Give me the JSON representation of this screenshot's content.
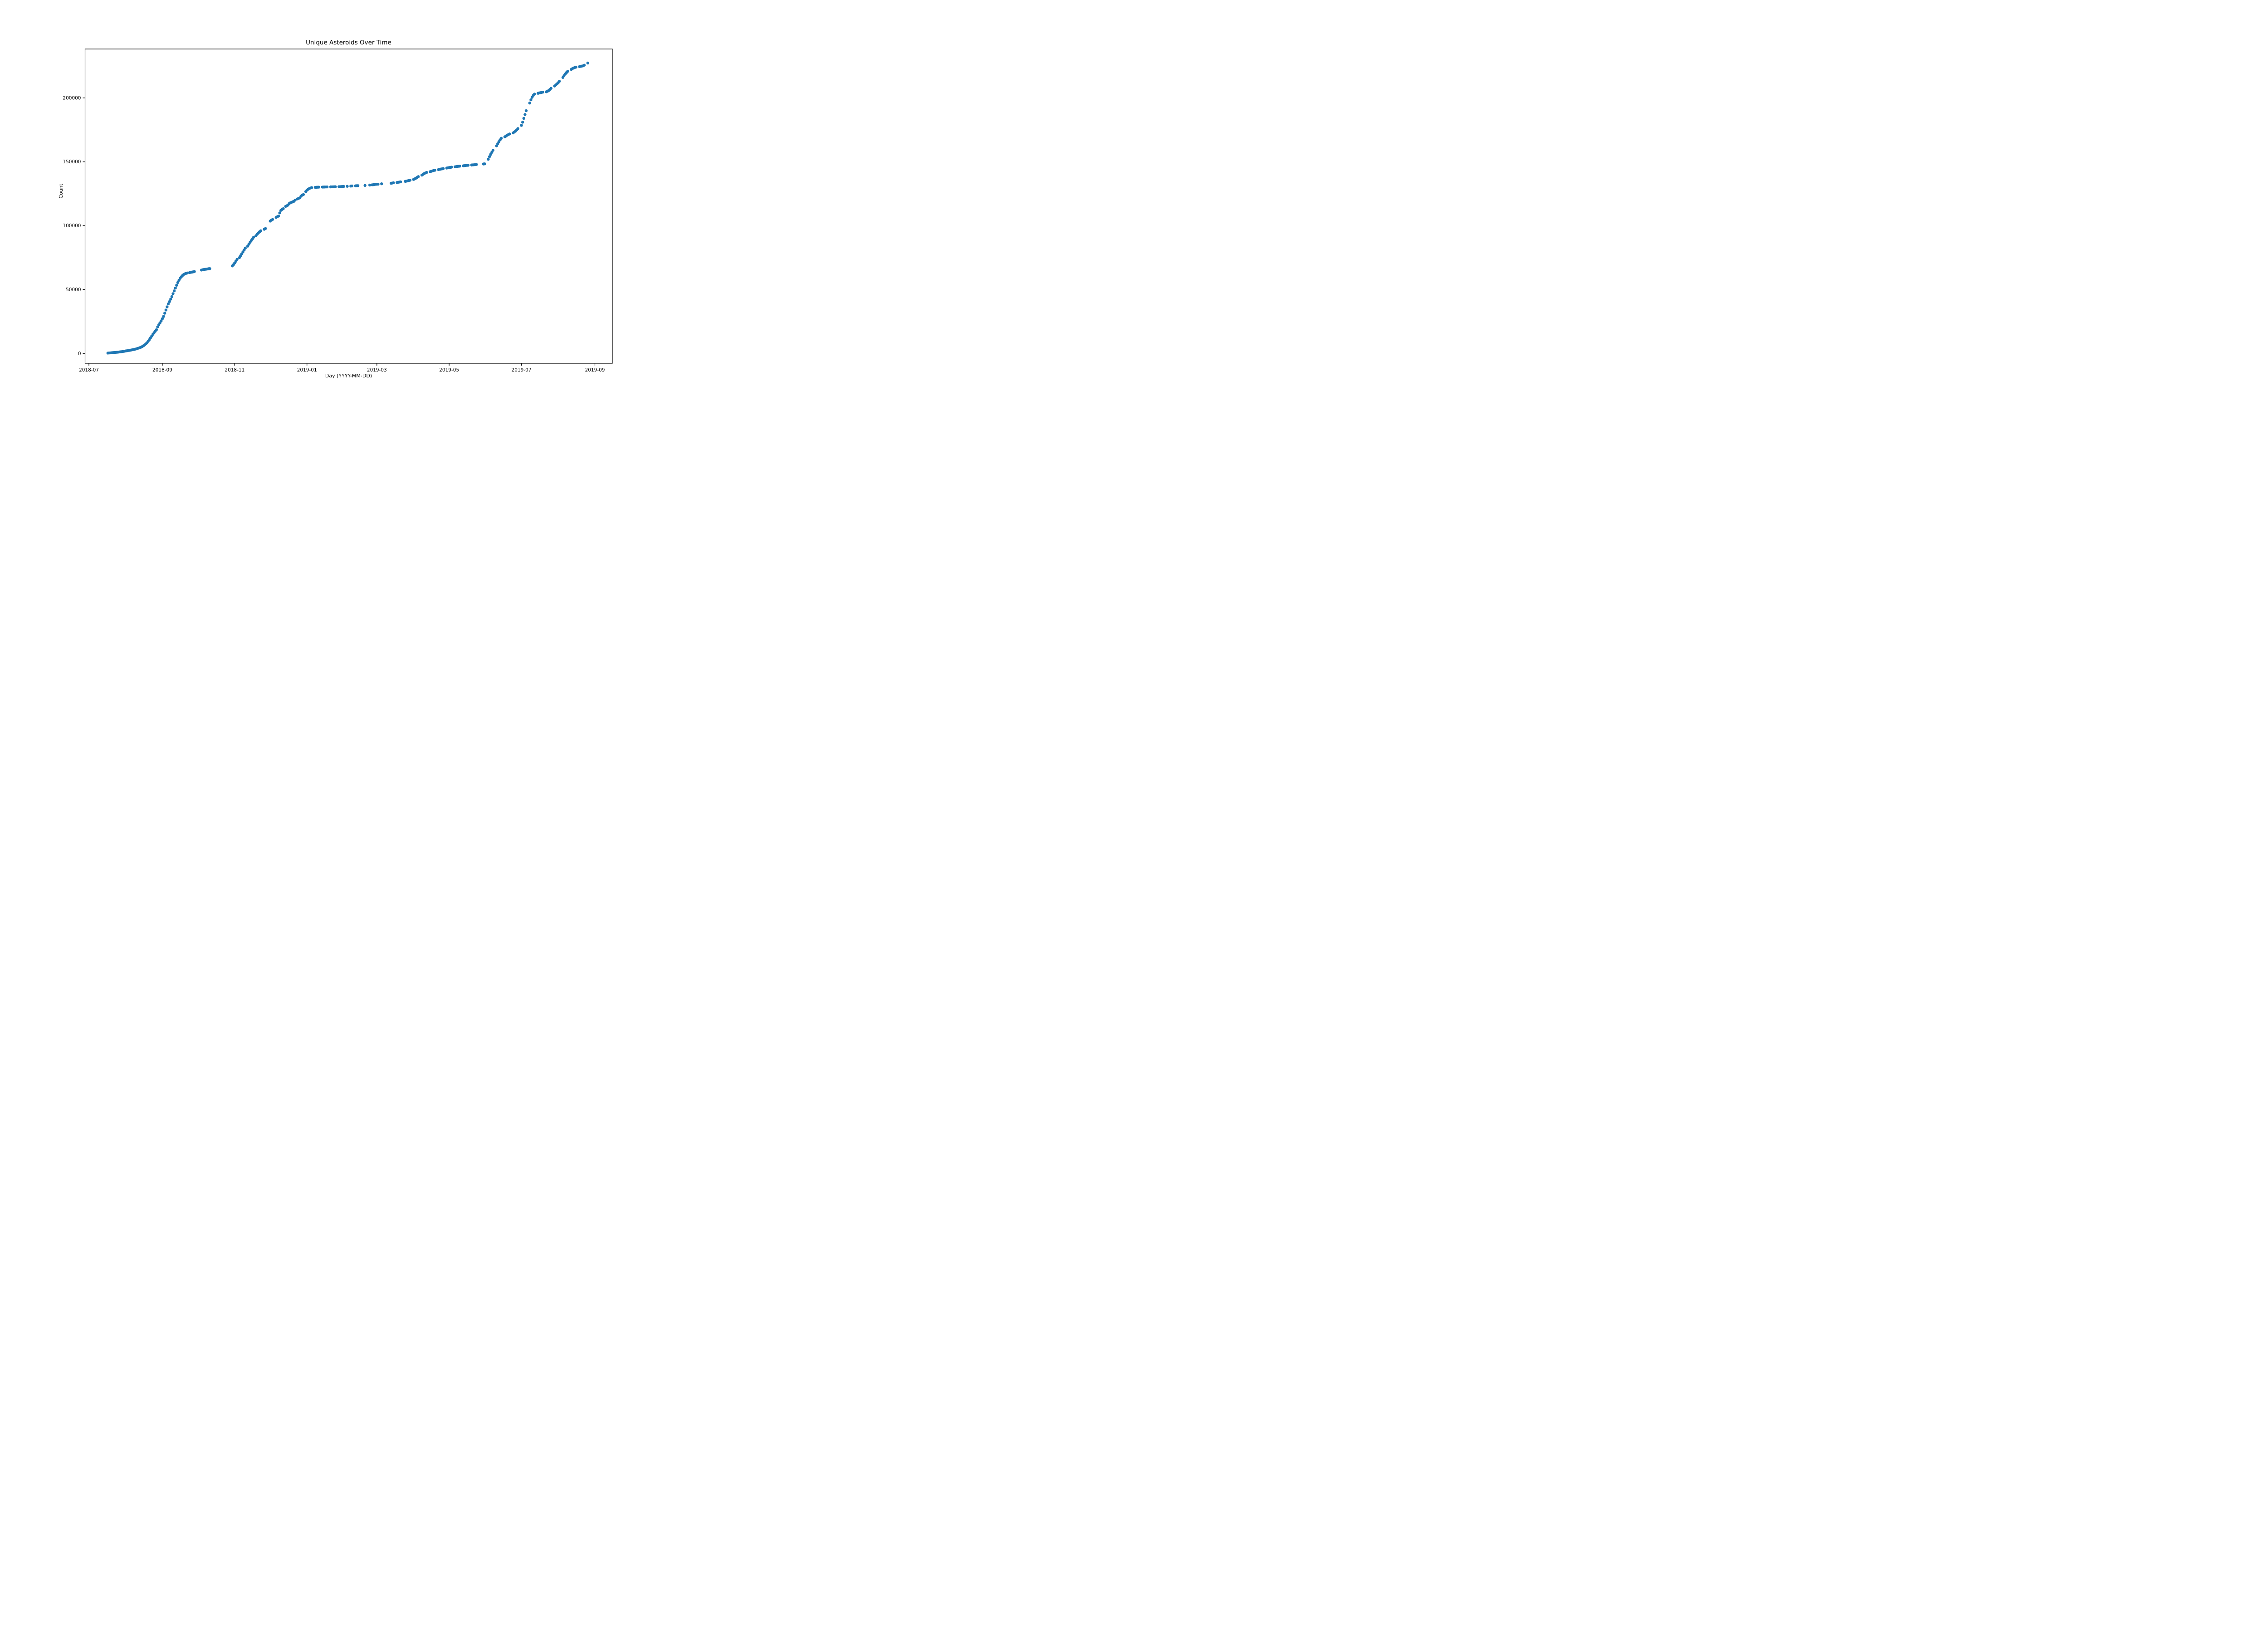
{
  "chart_data": {
    "type": "scatter",
    "title": "Unique Asteroids Over Time",
    "xlabel": "Day (YYYY-MM-DD)",
    "ylabel": "Count",
    "marker_color": "#1f77b4",
    "text_color": "#000000",
    "grid": false,
    "legend": false,
    "x_axis_start": "2018-07-01",
    "x_ticks": [
      "2018-07",
      "2018-09",
      "2018-11",
      "2019-01",
      "2019-03",
      "2019-05",
      "2019-07",
      "2019-09"
    ],
    "y_ticks": [
      0,
      50000,
      100000,
      150000,
      200000
    ],
    "ylim": [
      -11350,
      238000
    ],
    "points": [
      [
        "2018-07-17",
        300
      ],
      [
        "2018-07-18",
        400
      ],
      [
        "2018-07-19",
        480
      ],
      [
        "2018-07-20",
        560
      ],
      [
        "2018-07-21",
        640
      ],
      [
        "2018-07-22",
        720
      ],
      [
        "2018-07-23",
        800
      ],
      [
        "2018-07-24",
        900
      ],
      [
        "2018-07-25",
        1000
      ],
      [
        "2018-07-26",
        1100
      ],
      [
        "2018-07-27",
        1220
      ],
      [
        "2018-07-28",
        1350
      ],
      [
        "2018-07-29",
        1480
      ],
      [
        "2018-07-30",
        1620
      ],
      [
        "2018-07-31",
        1780
      ],
      [
        "2018-08-01",
        1950
      ],
      [
        "2018-08-02",
        2100
      ],
      [
        "2018-08-03",
        2260
      ],
      [
        "2018-08-04",
        2420
      ],
      [
        "2018-08-05",
        2580
      ],
      [
        "2018-08-06",
        2750
      ],
      [
        "2018-08-07",
        2950
      ],
      [
        "2018-08-08",
        3150
      ],
      [
        "2018-08-09",
        3380
      ],
      [
        "2018-08-10",
        3620
      ],
      [
        "2018-08-11",
        3900
      ],
      [
        "2018-08-12",
        4200
      ],
      [
        "2018-08-13",
        4550
      ],
      [
        "2018-08-14",
        4950
      ],
      [
        "2018-08-15",
        5400
      ],
      [
        "2018-08-16",
        6000
      ],
      [
        "2018-08-17",
        6700
      ],
      [
        "2018-08-18",
        7500
      ],
      [
        "2018-08-19",
        8400
      ],
      [
        "2018-08-20",
        9500
      ],
      [
        "2018-08-21",
        10800
      ],
      [
        "2018-08-22",
        12200
      ],
      [
        "2018-08-23",
        13600
      ],
      [
        "2018-08-24",
        15000
      ],
      [
        "2018-08-25",
        16300
      ],
      [
        "2018-08-26",
        17400
      ],
      [
        "2018-08-27",
        18600
      ],
      [
        "2018-08-28",
        20800
      ],
      [
        "2018-08-29",
        22500
      ],
      [
        "2018-08-30",
        24000
      ],
      [
        "2018-08-31",
        25500
      ],
      [
        "2018-09-01",
        27200
      ],
      [
        "2018-09-02",
        29000
      ],
      [
        "2018-09-03",
        31500
      ],
      [
        "2018-09-04",
        34000
      ],
      [
        "2018-09-05",
        36500
      ],
      [
        "2018-09-06",
        38800
      ],
      [
        "2018-09-07",
        40600
      ],
      [
        "2018-09-08",
        42500
      ],
      [
        "2018-09-09",
        44500
      ],
      [
        "2018-09-10",
        46800
      ],
      [
        "2018-09-11",
        49000
      ],
      [
        "2018-09-12",
        51200
      ],
      [
        "2018-09-13",
        53400
      ],
      [
        "2018-09-14",
        55500
      ],
      [
        "2018-09-15",
        57300
      ],
      [
        "2018-09-16",
        58800
      ],
      [
        "2018-09-17",
        60000
      ],
      [
        "2018-09-18",
        61000
      ],
      [
        "2018-09-19",
        61800
      ],
      [
        "2018-09-20",
        62300
      ],
      [
        "2018-09-21",
        62700
      ],
      [
        "2018-09-22",
        63000
      ],
      [
        "2018-09-24",
        63300
      ],
      [
        "2018-09-25",
        63500
      ],
      [
        "2018-09-26",
        63700
      ],
      [
        "2018-09-27",
        63900
      ],
      [
        "2018-09-28",
        64100
      ],
      [
        "2018-10-04",
        65300
      ],
      [
        "2018-10-05",
        65500
      ],
      [
        "2018-10-06",
        65700
      ],
      [
        "2018-10-07",
        65850
      ],
      [
        "2018-10-08",
        66000
      ],
      [
        "2018-10-09",
        66150
      ],
      [
        "2018-10-10",
        66300
      ],
      [
        "2018-10-11",
        66400
      ],
      [
        "2018-10-30",
        68500
      ],
      [
        "2018-10-31",
        69500
      ],
      [
        "2018-11-01",
        70800
      ],
      [
        "2018-11-02",
        72200
      ],
      [
        "2018-11-03",
        73600
      ],
      [
        "2018-11-05",
        75000
      ],
      [
        "2018-11-06",
        76500
      ],
      [
        "2018-11-07",
        78000
      ],
      [
        "2018-11-08",
        79500
      ],
      [
        "2018-11-09",
        81000
      ],
      [
        "2018-11-10",
        82500
      ],
      [
        "2018-11-12",
        84000
      ],
      [
        "2018-11-13",
        85500
      ],
      [
        "2018-11-14",
        87000
      ],
      [
        "2018-11-15",
        88400
      ],
      [
        "2018-11-16",
        89700
      ],
      [
        "2018-11-17",
        91000
      ],
      [
        "2018-11-19",
        92200
      ],
      [
        "2018-11-20",
        93300
      ],
      [
        "2018-11-21",
        94300
      ],
      [
        "2018-11-22",
        95200
      ],
      [
        "2018-11-23",
        96000
      ],
      [
        "2018-11-26",
        97200
      ],
      [
        "2018-11-27",
        97800
      ],
      [
        "2018-12-01",
        103600
      ],
      [
        "2018-12-02",
        104300
      ],
      [
        "2018-12-03",
        104900
      ],
      [
        "2018-12-06",
        106500
      ],
      [
        "2018-12-07",
        107000
      ],
      [
        "2018-12-08",
        107500
      ],
      [
        "2018-12-09",
        110000
      ],
      [
        "2018-12-10",
        112000
      ],
      [
        "2018-12-11",
        112700
      ],
      [
        "2018-12-12",
        113300
      ],
      [
        "2018-12-14",
        115100
      ],
      [
        "2018-12-15",
        115600
      ],
      [
        "2018-12-16",
        116100
      ],
      [
        "2018-12-17",
        117300
      ],
      [
        "2018-12-18",
        117900
      ],
      [
        "2018-12-19",
        118300
      ],
      [
        "2018-12-20",
        118700
      ],
      [
        "2018-12-21",
        119100
      ],
      [
        "2018-12-22",
        120000
      ],
      [
        "2018-12-24",
        121000
      ],
      [
        "2018-12-25",
        121400
      ],
      [
        "2018-12-26",
        121800
      ],
      [
        "2018-12-27",
        123100
      ],
      [
        "2018-12-28",
        123900
      ],
      [
        "2018-12-29",
        124400
      ],
      [
        "2018-12-31",
        126700
      ],
      [
        "2019-01-01",
        127800
      ],
      [
        "2019-01-02",
        128500
      ],
      [
        "2019-01-03",
        129100
      ],
      [
        "2019-01-04",
        129500
      ],
      [
        "2019-01-05",
        129800
      ],
      [
        "2019-01-08",
        130000
      ],
      [
        "2019-01-09",
        130060
      ],
      [
        "2019-01-10",
        130120
      ],
      [
        "2019-01-11",
        130170
      ],
      [
        "2019-01-14",
        130220
      ],
      [
        "2019-01-15",
        130250
      ],
      [
        "2019-01-16",
        130280
      ],
      [
        "2019-01-17",
        130310
      ],
      [
        "2019-01-18",
        130340
      ],
      [
        "2019-01-21",
        130370
      ],
      [
        "2019-01-22",
        130400
      ],
      [
        "2019-01-23",
        130430
      ],
      [
        "2019-01-24",
        130460
      ],
      [
        "2019-01-25",
        130490
      ],
      [
        "2019-01-28",
        130530
      ],
      [
        "2019-01-29",
        130570
      ],
      [
        "2019-01-30",
        130610
      ],
      [
        "2019-01-31",
        130660
      ],
      [
        "2019-02-01",
        130720
      ],
      [
        "2019-02-04",
        130820
      ],
      [
        "2019-02-07",
        131000
      ],
      [
        "2019-02-08",
        131100
      ],
      [
        "2019-02-11",
        131200
      ],
      [
        "2019-02-12",
        131260
      ],
      [
        "2019-02-13",
        131320
      ],
      [
        "2019-02-19",
        131500
      ],
      [
        "2019-02-23",
        131800
      ],
      [
        "2019-02-25",
        132000
      ],
      [
        "2019-02-26",
        132100
      ],
      [
        "2019-02-27",
        132220
      ],
      [
        "2019-02-28",
        132350
      ],
      [
        "2019-03-01",
        132450
      ],
      [
        "2019-03-02",
        132520
      ],
      [
        "2019-03-05",
        132800
      ],
      [
        "2019-03-13",
        133200
      ],
      [
        "2019-03-14",
        133400
      ],
      [
        "2019-03-15",
        133600
      ],
      [
        "2019-03-18",
        133800
      ],
      [
        "2019-03-19",
        134000
      ],
      [
        "2019-03-20",
        134150
      ],
      [
        "2019-03-21",
        134300
      ],
      [
        "2019-03-25",
        134700
      ],
      [
        "2019-03-26",
        134900
      ],
      [
        "2019-03-27",
        135100
      ],
      [
        "2019-03-28",
        135300
      ],
      [
        "2019-03-29",
        135600
      ],
      [
        "2019-04-01",
        136200
      ],
      [
        "2019-04-02",
        136700
      ],
      [
        "2019-04-03",
        137200
      ],
      [
        "2019-04-04",
        137800
      ],
      [
        "2019-04-05",
        138400
      ],
      [
        "2019-04-08",
        139600
      ],
      [
        "2019-04-09",
        140200
      ],
      [
        "2019-04-10",
        140800
      ],
      [
        "2019-04-11",
        141300
      ],
      [
        "2019-04-12",
        141700
      ],
      [
        "2019-04-15",
        142300
      ],
      [
        "2019-04-16",
        142600
      ],
      [
        "2019-04-17",
        142900
      ],
      [
        "2019-04-18",
        143200
      ],
      [
        "2019-04-19",
        143400
      ],
      [
        "2019-04-22",
        143900
      ],
      [
        "2019-04-23",
        144100
      ],
      [
        "2019-04-24",
        144300
      ],
      [
        "2019-04-25",
        144500
      ],
      [
        "2019-04-26",
        144700
      ],
      [
        "2019-04-29",
        145100
      ],
      [
        "2019-04-30",
        145300
      ],
      [
        "2019-05-01",
        145500
      ],
      [
        "2019-05-02",
        145650
      ],
      [
        "2019-05-03",
        145800
      ],
      [
        "2019-05-06",
        146100
      ],
      [
        "2019-05-07",
        146250
      ],
      [
        "2019-05-08",
        146400
      ],
      [
        "2019-05-09",
        146500
      ],
      [
        "2019-05-10",
        146600
      ],
      [
        "2019-05-13",
        146900
      ],
      [
        "2019-05-14",
        147000
      ],
      [
        "2019-05-15",
        147100
      ],
      [
        "2019-05-16",
        147200
      ],
      [
        "2019-05-17",
        147300
      ],
      [
        "2019-05-20",
        147500
      ],
      [
        "2019-05-21",
        147600
      ],
      [
        "2019-05-22",
        147700
      ],
      [
        "2019-05-23",
        147800
      ],
      [
        "2019-05-24",
        147900
      ],
      [
        "2019-05-30",
        148300
      ],
      [
        "2019-05-31",
        148400
      ],
      [
        "2019-06-03",
        152000
      ],
      [
        "2019-06-04",
        154000
      ],
      [
        "2019-06-05",
        155800
      ],
      [
        "2019-06-06",
        157400
      ],
      [
        "2019-06-07",
        159000
      ],
      [
        "2019-06-10",
        162500
      ],
      [
        "2019-06-11",
        164200
      ],
      [
        "2019-06-12",
        165800
      ],
      [
        "2019-06-13",
        167200
      ],
      [
        "2019-06-14",
        168400
      ],
      [
        "2019-06-17",
        169600
      ],
      [
        "2019-06-18",
        170200
      ],
      [
        "2019-06-19",
        170800
      ],
      [
        "2019-06-20",
        171300
      ],
      [
        "2019-06-21",
        171800
      ],
      [
        "2019-06-24",
        172600
      ],
      [
        "2019-06-25",
        173300
      ],
      [
        "2019-06-26",
        174100
      ],
      [
        "2019-06-27",
        175000
      ],
      [
        "2019-06-28",
        176000
      ],
      [
        "2019-07-01",
        178500
      ],
      [
        "2019-07-02",
        181000
      ],
      [
        "2019-07-03",
        184000
      ],
      [
        "2019-07-04",
        187000
      ],
      [
        "2019-07-05",
        190000
      ],
      [
        "2019-07-08",
        196000
      ],
      [
        "2019-07-09",
        198500
      ],
      [
        "2019-07-10",
        200500
      ],
      [
        "2019-07-11",
        202000
      ],
      [
        "2019-07-12",
        203000
      ],
      [
        "2019-07-15",
        203600
      ],
      [
        "2019-07-16",
        203900
      ],
      [
        "2019-07-17",
        204100
      ],
      [
        "2019-07-18",
        204300
      ],
      [
        "2019-07-19",
        204500
      ],
      [
        "2019-07-22",
        204800
      ],
      [
        "2019-07-23",
        205200
      ],
      [
        "2019-07-24",
        205800
      ],
      [
        "2019-07-25",
        206600
      ],
      [
        "2019-07-26",
        207500
      ],
      [
        "2019-07-29",
        209300
      ],
      [
        "2019-07-30",
        210200
      ],
      [
        "2019-07-31",
        211000
      ],
      [
        "2019-08-01",
        211900
      ],
      [
        "2019-08-02",
        213000
      ],
      [
        "2019-08-05",
        216000
      ],
      [
        "2019-08-06",
        217500
      ],
      [
        "2019-08-07",
        218700
      ],
      [
        "2019-08-08",
        219800
      ],
      [
        "2019-08-09",
        220800
      ],
      [
        "2019-08-12",
        222300
      ],
      [
        "2019-08-13",
        222900
      ],
      [
        "2019-08-14",
        223400
      ],
      [
        "2019-08-15",
        223800
      ],
      [
        "2019-08-16",
        224100
      ],
      [
        "2019-08-19",
        224500
      ],
      [
        "2019-08-20",
        224700
      ],
      [
        "2019-08-21",
        224900
      ],
      [
        "2019-08-22",
        225100
      ],
      [
        "2019-08-23",
        225600
      ],
      [
        "2019-08-26",
        227300
      ]
    ]
  }
}
